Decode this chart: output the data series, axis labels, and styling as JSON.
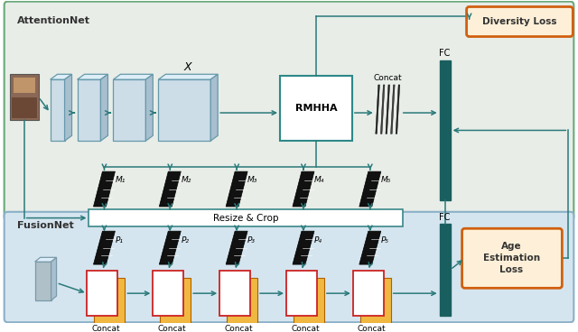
{
  "fig_width": 6.4,
  "fig_height": 3.68,
  "dpi": 100,
  "attention_bg": "#e8ede8",
  "fusion_bg": "#d5e5ef",
  "attn_border": "#6aaa7a",
  "fusion_border": "#8ab0c8",
  "teal_dark": "#1a5f5f",
  "teal_arrow": "#2a7a7a",
  "box_face_light": "#ccdde8",
  "box_face_border": "#6699aa",
  "rmhha_border": "#2d8888",
  "orange_border": "#d06010",
  "orange_fill": "#fef0d8",
  "attn_label": "AttentionNet",
  "fusion_label": "FusionNet",
  "diversity_label": "Diversity Loss",
  "age_label": "Age\nEstimation\nLoss",
  "rmhha_label": "RMHHA",
  "resize_label": "Resize & Crop",
  "fc_label": "FC",
  "concat_label": "Concat",
  "x_label": "X",
  "m_labels": [
    "M₁",
    "M₂",
    "M₃",
    "M₄",
    "M₅"
  ],
  "p_labels": [
    "P₁",
    "P₂",
    "P₃",
    "P₄",
    "P₅"
  ]
}
